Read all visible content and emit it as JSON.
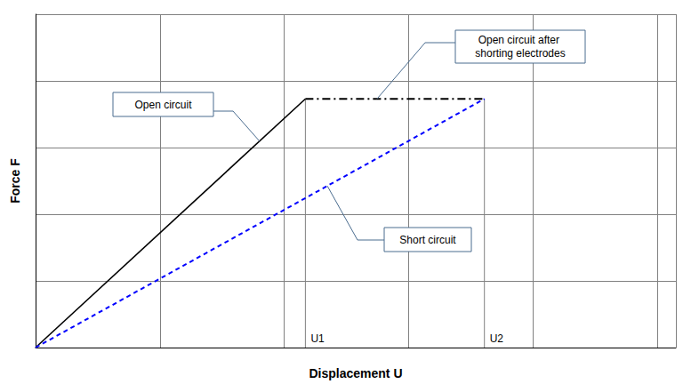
{
  "chart_data": {
    "type": "line",
    "x_label": "Displacement U",
    "y_label": "Force F",
    "xlim": [
      0,
      5.15
    ],
    "xticks": [
      0,
      1,
      2,
      3,
      4,
      5
    ],
    "ylim": [
      0,
      5
    ],
    "yticks": [
      0,
      1,
      2,
      3,
      4,
      5
    ],
    "grid": true,
    "tick_labels": false,
    "series": [
      {
        "name": "Open circuit",
        "color": "#000000",
        "line_style": "solid",
        "marker": "arrow",
        "x": [
          0,
          2.17
        ],
        "values": [
          0,
          3.73
        ]
      },
      {
        "name": "Open circuit after shorting electrodes",
        "color": "#000000",
        "line_style": "dashdot",
        "marker": "none",
        "x": [
          2.17,
          3.61
        ],
        "values": [
          3.73,
          3.73
        ]
      },
      {
        "name": "Short circuit",
        "color": "#0000ff",
        "line_style": "dashed",
        "marker": "arrow",
        "x": [
          0,
          3.61
        ],
        "values": [
          0,
          3.73
        ]
      }
    ],
    "annotations": [
      {
        "text": "U1",
        "x": 2.17,
        "y": 3.73
      },
      {
        "text": "U2",
        "x": 3.61,
        "y": 3.73
      }
    ]
  }
}
